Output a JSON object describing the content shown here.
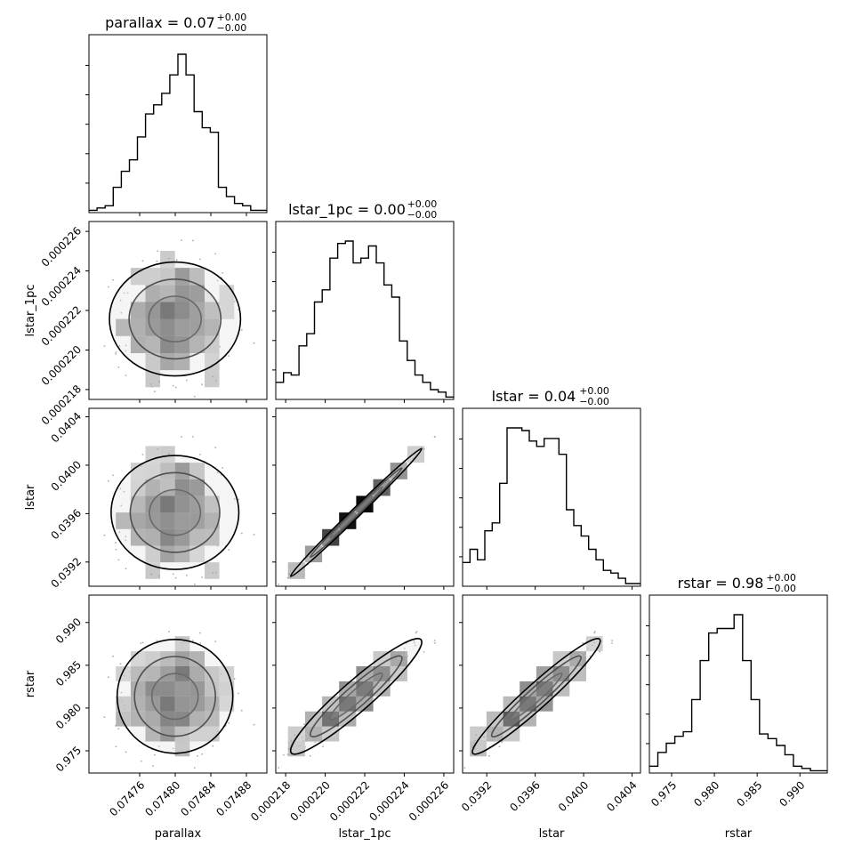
{
  "chart_data": {
    "type": "corner",
    "params": [
      "parallax",
      "lstar_1pc",
      "lstar",
      "rstar"
    ],
    "axis_labels": [
      "parallax",
      "lstar_1pc",
      "lstar",
      "rstar"
    ],
    "titles": [
      {
        "main": "parallax = 0.07",
        "sup": "+0.00",
        "sub": "−0.00"
      },
      {
        "main": "lstar_1pc = 0.00",
        "sup": "+0.00",
        "sub": "−0.00"
      },
      {
        "main": "lstar = 0.04",
        "sup": "+0.00",
        "sub": "−0.00"
      },
      {
        "main": "rstar = 0.98",
        "sup": "+0.00",
        "sub": "−0.00"
      }
    ],
    "ranges": [
      [
        0.074703,
        0.074903
      ],
      [
        0.0002175,
        0.0002265
      ],
      [
        0.039,
        0.04047
      ],
      [
        0.9724,
        0.9932
      ]
    ],
    "ticks": [
      {
        "values": [
          0.07476,
          0.0748,
          0.07484,
          0.07488
        ],
        "labels": [
          "0.07476",
          "0.07480",
          "0.07484",
          "0.07488"
        ]
      },
      {
        "values": [
          0.000218,
          0.00022,
          0.000222,
          0.000224,
          0.000226
        ],
        "labels": [
          "0.000218",
          "0.000220",
          "0.000222",
          "0.000224",
          "0.000226"
        ]
      },
      {
        "values": [
          0.0392,
          0.0396,
          0.04,
          0.0404
        ],
        "labels": [
          "0.0392",
          "0.0396",
          "0.0400",
          "0.0404"
        ]
      },
      {
        "values": [
          0.975,
          0.98,
          0.985,
          0.99
        ],
        "labels": [
          "0.975",
          "0.980",
          "0.985",
          "0.990"
        ]
      }
    ],
    "histograms": [
      [
        1,
        2,
        3,
        11,
        18,
        23,
        33,
        43,
        47,
        52,
        60,
        69,
        60,
        44,
        37,
        35,
        11,
        7,
        4,
        3,
        1,
        1
      ],
      [
        7,
        11,
        10,
        22,
        27,
        40,
        45,
        58,
        64,
        65,
        56,
        58,
        63,
        56,
        47,
        42,
        24,
        16,
        10,
        7,
        4,
        3,
        1
      ],
      [
        9,
        14,
        10,
        21,
        24,
        39,
        60,
        60,
        59,
        55,
        53,
        56,
        56,
        50,
        29,
        23,
        19,
        14,
        10,
        6,
        5,
        3,
        1,
        1
      ],
      [
        3,
        9,
        13,
        16,
        18,
        32,
        49,
        61,
        63,
        63,
        69,
        49,
        32,
        17,
        15,
        12,
        8,
        3,
        2,
        1,
        1
      ]
    ],
    "hist_peak": [
      69,
      65,
      60,
      69
    ],
    "correlation": [
      [
        1.0,
        0.0,
        0.0,
        0.0
      ],
      [
        0.0,
        1.0,
        0.995,
        0.94
      ],
      [
        0.0,
        0.995,
        1.0,
        0.96
      ],
      [
        0.0,
        0.94,
        0.96,
        1.0
      ]
    ],
    "grid": false,
    "legend": "none"
  }
}
